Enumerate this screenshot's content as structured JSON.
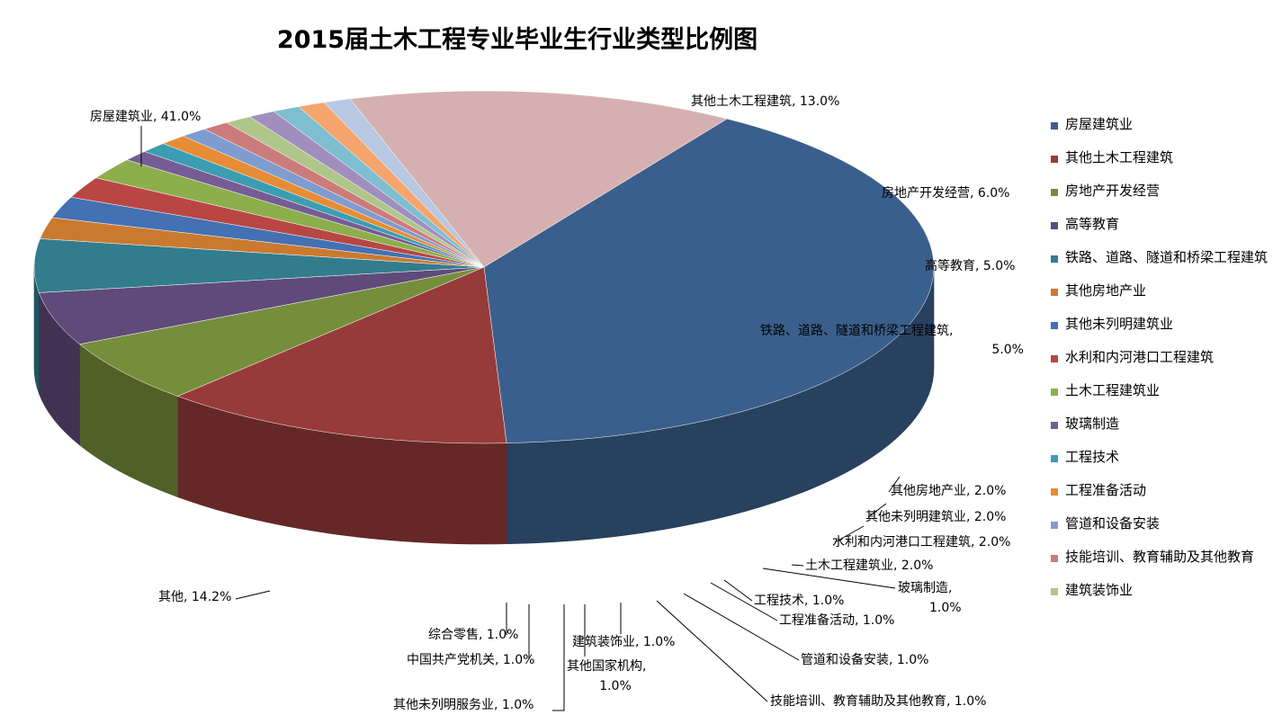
{
  "chart_data": {
    "type": "pie",
    "title": "2015届土木工程专业毕业生行业类型比例图",
    "slices": [
      {
        "name": "房屋建筑业",
        "value": 41.0,
        "label": "房屋建筑业, 41.0%",
        "color": "#3B5F8C"
      },
      {
        "name": "其他土木工程建筑",
        "value": 13.0,
        "label": "其他土木工程建筑, 13.0%",
        "color": "#963B3A"
      },
      {
        "name": "房地产开发经营",
        "value": 6.0,
        "label": "房地产开发经营, 6.0%",
        "color": "#758E3B"
      },
      {
        "name": "高等教育",
        "value": 5.0,
        "label": "高等教育, 5.0%",
        "color": "#5F4A7B"
      },
      {
        "name": "铁路、道路、隧道和桥梁工程建筑",
        "value": 5.0,
        "label": "铁路、道路、隧道和桥梁工程建筑, 5.0%",
        "color": "#317D8E"
      },
      {
        "name": "其他房地产业",
        "value": 2.0,
        "label": "其他房地产业, 2.0%",
        "color": "#CA7A2F"
      },
      {
        "name": "其他未列明建筑业",
        "value": 2.0,
        "label": "其他未列明建筑业, 2.0%",
        "color": "#4471B4"
      },
      {
        "name": "水利和内河港口工程建筑",
        "value": 2.0,
        "label": "水利和内河港口工程建筑, 2.0%",
        "color": "#B84744"
      },
      {
        "name": "土木工程建筑业",
        "value": 2.0,
        "label": "土木工程建筑业, 2.0%",
        "color": "#8DAE4D"
      },
      {
        "name": "玻璃制造",
        "value": 1.0,
        "label": "玻璃制造, 1.0%",
        "color": "#765C95"
      },
      {
        "name": "工程技术",
        "value": 1.0,
        "label": "工程技术, 1.0%",
        "color": "#3B9DB1"
      },
      {
        "name": "工程准备活动",
        "value": 1.0,
        "label": "工程准备活动, 1.0%",
        "color": "#E68C35"
      },
      {
        "name": "管道和设备安装",
        "value": 1.0,
        "label": "管道和设备安装, 1.0%",
        "color": "#7F9CCF"
      },
      {
        "name": "技能培训、教育辅助及其他教育",
        "value": 1.0,
        "label": "技能培训、教育辅助及其他教育, 1.0%",
        "color": "#CC7B7B"
      },
      {
        "name": "建筑装饰业",
        "value": 1.0,
        "label": "建筑装饰业, 1.0%",
        "color": "#AFC68A"
      },
      {
        "name": "其他国家机构",
        "value": 1.0,
        "label": "其他国家机构, 1.0%",
        "color": "#A08FBE"
      },
      {
        "name": "其他未列明服务业",
        "value": 1.0,
        "label": "其他未列明服务业, 1.0%",
        "color": "#7FBED0"
      },
      {
        "name": "中国共产党机关",
        "value": 1.0,
        "label": "中国共产党机关, 1.0%",
        "color": "#F5A56B"
      },
      {
        "name": "综合零售",
        "value": 1.0,
        "label": "综合零售, 1.0%",
        "color": "#B8C8E2"
      },
      {
        "name": "其他",
        "value": 14.2,
        "label": "其他, 14.2%",
        "color": "#D6B0B0"
      }
    ],
    "legend": {
      "position": "right",
      "entries": [
        "房屋建筑业",
        "其他土木工程建筑",
        "房地产开发经营",
        "高等教育",
        "铁路、道路、隧道和桥梁工程建筑",
        "其他房地产业",
        "其他未列明建筑业",
        "水利和内河港口工程建筑",
        "土木工程建筑业",
        "玻璃制造",
        "工程技术",
        "工程准备活动",
        "管道和设备安装",
        "技能培训、教育辅助及其他教育",
        "建筑装饰业"
      ]
    }
  }
}
